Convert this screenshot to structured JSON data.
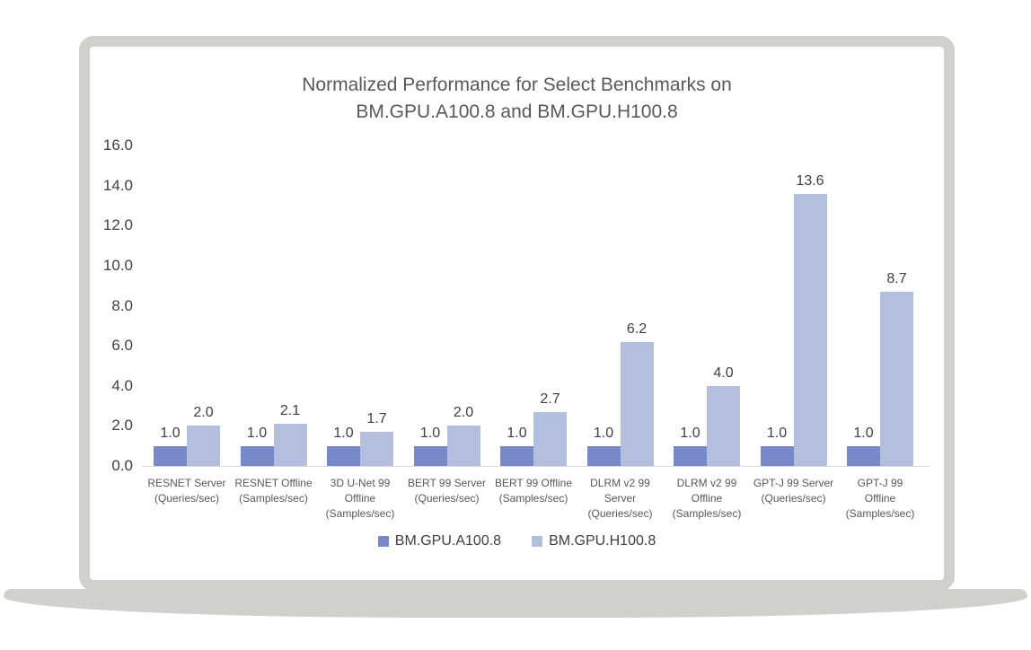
{
  "card": {
    "background": "#ffffff",
    "border_color": "#d0d0cd",
    "shadow_color": "#d0d0cd"
  },
  "chart_data": {
    "type": "bar",
    "title": "Normalized Performance for Select Benchmarks on\nBM.GPU.A100.8 and BM.GPU.H100.8",
    "categories": [
      "RESNET Server\n(Queries/sec)",
      "RESNET Offline\n(Samples/sec)",
      "3D U-Net 99\nOffline\n(Samples/sec)",
      "BERT 99 Server\n(Queries/sec)",
      "BERT 99 Offline\n(Samples/sec)",
      "DLRM v2 99\nServer\n(Queries/sec)",
      "DLRM v2 99\nOffline\n(Samples/sec)",
      "GPT-J 99 Server\n(Queries/sec)",
      "GPT-J 99\nOffline\n(Samples/sec)"
    ],
    "series": [
      {
        "name": "BM.GPU.A100.8",
        "color": "#7889CA",
        "values": [
          1.0,
          1.0,
          1.0,
          1.0,
          1.0,
          1.0,
          1.0,
          1.0,
          1.0
        ]
      },
      {
        "name": "BM.GPU.H100.8",
        "color": "#B4BEDE",
        "values": [
          2.0,
          2.1,
          1.7,
          2.0,
          2.7,
          6.2,
          4.0,
          13.6,
          8.7
        ]
      }
    ],
    "ylim": [
      0,
      16
    ],
    "yticks": [
      0,
      2,
      4,
      6,
      8,
      10,
      12,
      14,
      16
    ],
    "ytick_format_decimals": 1,
    "data_label_decimals": 1,
    "grid": false,
    "legend_position": "bottom",
    "colors": {
      "title": "#595959",
      "tick_label": "#404040",
      "data_label": "#3f3f3f",
      "category_label": "#595959",
      "axis_line": "#d9d9d9",
      "legend_label": "#404040"
    }
  }
}
